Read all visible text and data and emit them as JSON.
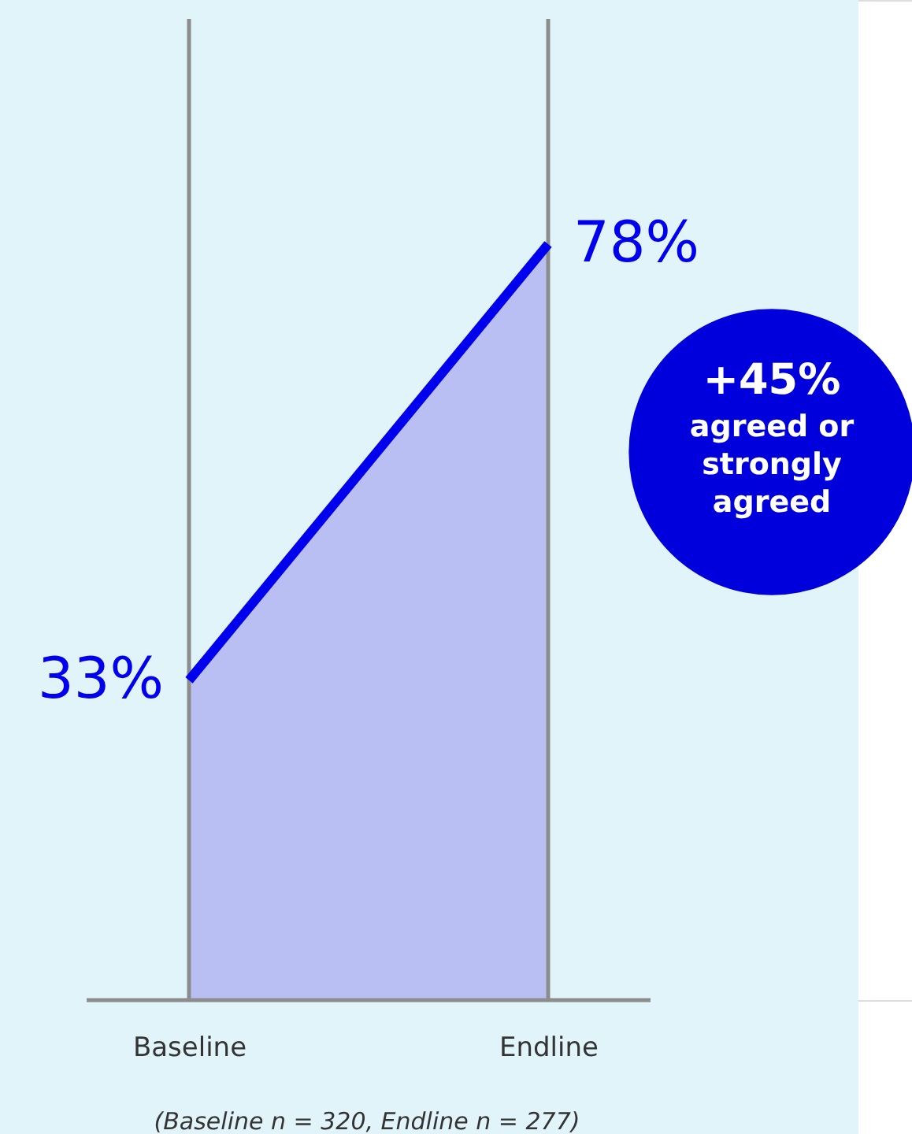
{
  "chart_data": {
    "type": "area",
    "categories": [
      "Baseline",
      "Endline"
    ],
    "series": [
      {
        "color": "#0000ee",
        "values": [
          33,
          78
        ],
        "value_labels": [
          "33%",
          "78%"
        ]
      }
    ],
    "grid": "x",
    "annotations": [
      "+45%",
      "agreed or strongly agreed",
      "(Baseline n = 320, Endline n = 277)"
    ]
  }
}
